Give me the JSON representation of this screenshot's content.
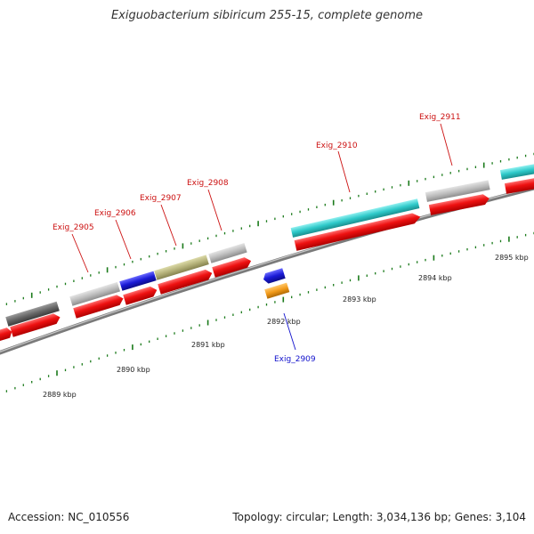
{
  "title": "Exiguobacterium sibiricum 255-15, complete genome",
  "footer": {
    "accession": "Accession: NC_010556",
    "summary": "Topology: circular; Length: 3,034,136 bp; Genes: 3,104"
  },
  "colors": {
    "backbone": "#8a8a8a",
    "tick": "#1a7a1a",
    "cds": "#ee1111",
    "label_default": "#cc1111",
    "label_reverse": "#1111cc"
  },
  "scale_labels": [
    "2889 kbp",
    "2890 kbp",
    "2891 kbp",
    "2892 kbp",
    "2893 kbp",
    "2894 kbp",
    "2895 kbp"
  ],
  "gene_labels": {
    "g2905": "Exig_2905",
    "g2906": "Exig_2906",
    "g2907": "Exig_2907",
    "g2908": "Exig_2908",
    "g2909": "Exig_2909",
    "g2910": "Exig_2910",
    "g2911": "Exig_2911"
  },
  "feature_colors": {
    "dark_gray": "#666666",
    "light_gray": "#bdbdbd",
    "blue": "#1a1ad6",
    "khaki": "#b5b27a",
    "cyan": "#2ec9c9",
    "orange": "#f29a1a"
  }
}
